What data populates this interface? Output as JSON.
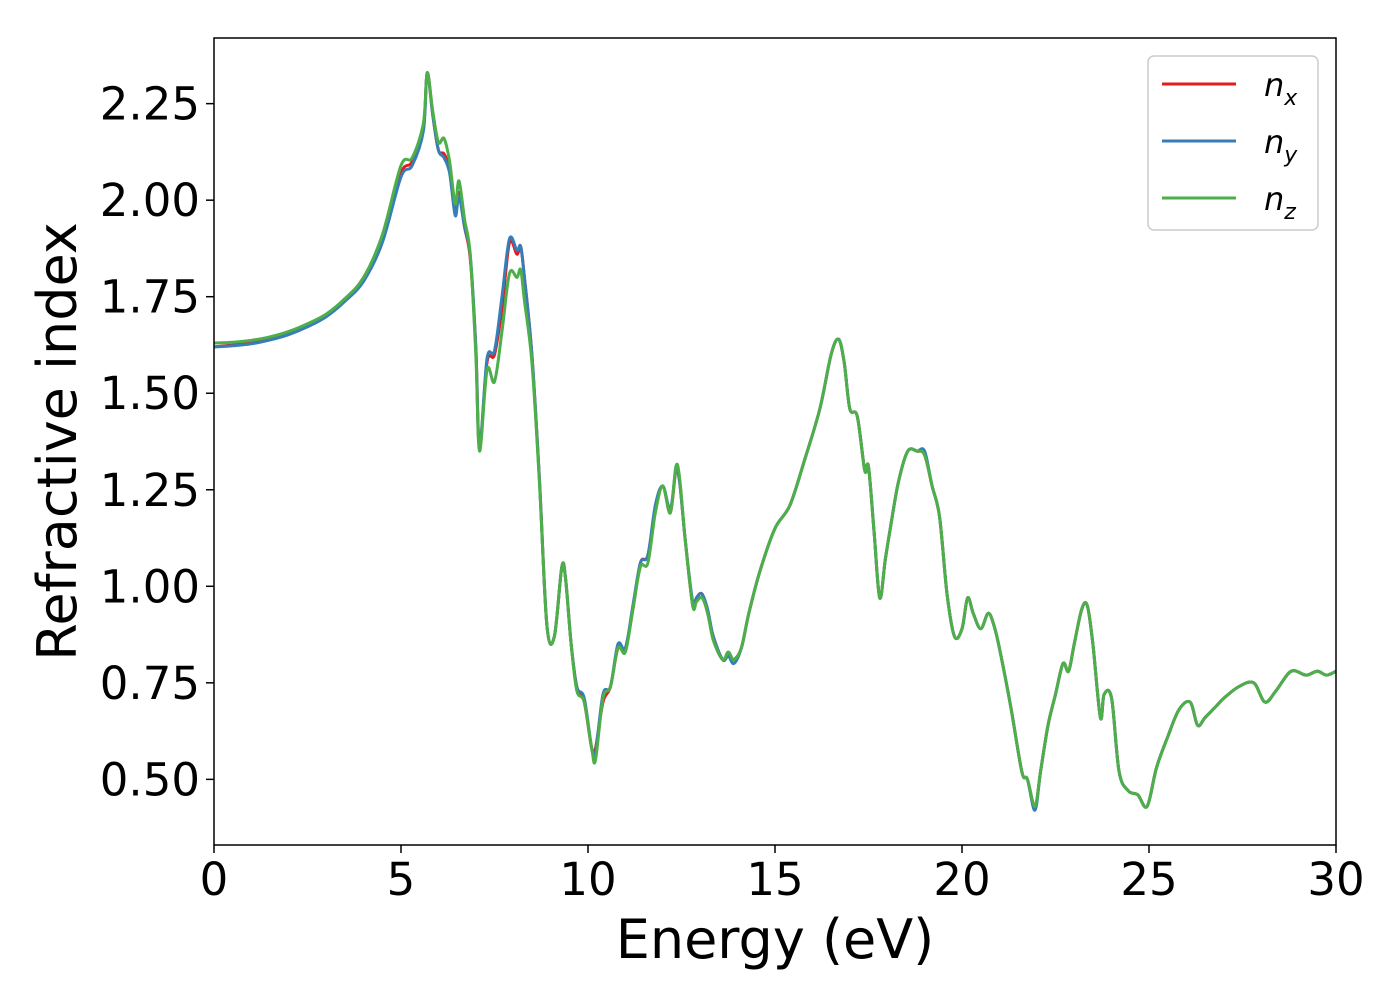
{
  "chart_data": {
    "type": "line",
    "title": "",
    "xlabel": "Energy (eV)",
    "ylabel": "Refractive index",
    "xlim": [
      0,
      30
    ],
    "ylim": [
      0.33,
      2.42
    ],
    "xticks": [
      0,
      5,
      10,
      15,
      20,
      25,
      30
    ],
    "xtick_labels": [
      "0",
      "5",
      "10",
      "15",
      "20",
      "25",
      "30"
    ],
    "yticks": [
      0.5,
      0.75,
      1.0,
      1.25,
      1.5,
      1.75,
      2.0,
      2.25
    ],
    "ytick_labels": [
      "0.50",
      "0.75",
      "1.00",
      "1.25",
      "1.50",
      "1.75",
      "2.00",
      "2.25"
    ],
    "grid": false,
    "legend_position": "top-right",
    "x": [
      0,
      0.5,
      1,
      1.5,
      2,
      2.5,
      3,
      3.5,
      4,
      4.5,
      5,
      5.3,
      5.6,
      5.7,
      5.85,
      6.0,
      6.15,
      6.3,
      6.45,
      6.55,
      6.7,
      6.85,
      7.0,
      7.1,
      7.3,
      7.5,
      7.7,
      7.9,
      8.1,
      8.2,
      8.3,
      8.5,
      8.7,
      8.9,
      9.1,
      9.3,
      9.4,
      9.55,
      9.7,
      9.9,
      10.1,
      10.2,
      10.4,
      10.6,
      10.8,
      11.0,
      11.2,
      11.4,
      11.6,
      11.8,
      12.0,
      12.2,
      12.35,
      12.45,
      12.6,
      12.8,
      12.9,
      13.05,
      13.2,
      13.35,
      13.6,
      13.75,
      13.9,
      14.1,
      14.3,
      14.6,
      15.0,
      15.4,
      15.8,
      16.2,
      16.5,
      16.7,
      16.85,
      17.0,
      17.2,
      17.4,
      17.5,
      17.65,
      17.8,
      17.95,
      18.1,
      18.3,
      18.55,
      18.8,
      19.0,
      19.2,
      19.4,
      19.6,
      19.8,
      20.0,
      20.15,
      20.3,
      20.5,
      20.7,
      20.85,
      21.0,
      21.3,
      21.6,
      21.75,
      21.95,
      22.1,
      22.3,
      22.5,
      22.7,
      22.85,
      23.0,
      23.2,
      23.35,
      23.5,
      23.7,
      23.8,
      24.0,
      24.2,
      24.45,
      24.7,
      24.95,
      25.2,
      25.5,
      25.8,
      26.1,
      26.3,
      26.5,
      26.8,
      27.0,
      27.4,
      27.8,
      28.1,
      28.4,
      28.8,
      29.2,
      29.5,
      29.75,
      30.0
    ],
    "series": [
      {
        "name": "n_x",
        "color": "#e41a1c",
        "values": [
          1.62,
          1.625,
          1.63,
          1.64,
          1.655,
          1.675,
          1.7,
          1.74,
          1.8,
          1.9,
          2.07,
          2.1,
          2.19,
          2.33,
          2.22,
          2.13,
          2.12,
          2.08,
          1.97,
          2.02,
          1.93,
          1.85,
          1.62,
          1.36,
          1.58,
          1.6,
          1.72,
          1.89,
          1.86,
          1.88,
          1.8,
          1.6,
          1.28,
          0.9,
          0.87,
          1.05,
          1.02,
          0.85,
          0.74,
          0.7,
          0.58,
          0.58,
          0.7,
          0.74,
          0.84,
          0.84,
          0.94,
          1.06,
          1.08,
          1.2,
          1.26,
          1.19,
          1.3,
          1.27,
          1.12,
          0.95,
          0.97,
          0.98,
          0.93,
          0.87,
          0.81,
          0.82,
          0.81,
          0.84,
          0.93,
          1.04,
          1.15,
          1.21,
          1.33,
          1.46,
          1.6,
          1.64,
          1.58,
          1.46,
          1.44,
          1.3,
          1.31,
          1.14,
          0.97,
          1.07,
          1.16,
          1.27,
          1.35,
          1.35,
          1.34,
          1.26,
          1.18,
          0.98,
          0.87,
          0.89,
          0.97,
          0.93,
          0.89,
          0.93,
          0.9,
          0.84,
          0.69,
          0.52,
          0.5,
          0.43,
          0.52,
          0.64,
          0.72,
          0.8,
          0.78,
          0.85,
          0.94,
          0.95,
          0.85,
          0.66,
          0.72,
          0.71,
          0.52,
          0.47,
          0.46,
          0.43,
          0.53,
          0.61,
          0.68,
          0.7,
          0.64,
          0.66,
          0.69,
          0.71,
          0.74,
          0.75,
          0.7,
          0.73,
          0.78,
          0.77,
          0.78,
          0.77,
          0.78
        ],
        "note": ""
      },
      {
        "name": "n_y",
        "color": "#377eb8",
        "values": [
          1.62,
          1.623,
          1.628,
          1.638,
          1.652,
          1.672,
          1.698,
          1.738,
          1.79,
          1.89,
          2.06,
          2.09,
          2.18,
          2.33,
          2.22,
          2.13,
          2.11,
          2.07,
          1.96,
          2.01,
          1.93,
          1.86,
          1.62,
          1.36,
          1.59,
          1.61,
          1.75,
          1.9,
          1.87,
          1.88,
          1.8,
          1.6,
          1.28,
          0.9,
          0.87,
          1.05,
          1.02,
          0.85,
          0.74,
          0.71,
          0.58,
          0.57,
          0.72,
          0.74,
          0.85,
          0.84,
          0.95,
          1.06,
          1.08,
          1.21,
          1.26,
          1.2,
          1.3,
          1.27,
          1.12,
          0.96,
          0.97,
          0.98,
          0.94,
          0.87,
          0.81,
          0.82,
          0.8,
          0.84,
          0.93,
          1.04,
          1.15,
          1.21,
          1.33,
          1.46,
          1.6,
          1.64,
          1.58,
          1.46,
          1.44,
          1.3,
          1.31,
          1.14,
          0.97,
          1.07,
          1.16,
          1.27,
          1.35,
          1.35,
          1.35,
          1.26,
          1.18,
          0.98,
          0.87,
          0.89,
          0.97,
          0.93,
          0.89,
          0.93,
          0.9,
          0.84,
          0.69,
          0.52,
          0.5,
          0.42,
          0.52,
          0.64,
          0.72,
          0.8,
          0.78,
          0.85,
          0.94,
          0.95,
          0.85,
          0.66,
          0.72,
          0.71,
          0.52,
          0.47,
          0.46,
          0.43,
          0.53,
          0.61,
          0.68,
          0.7,
          0.64,
          0.66,
          0.69,
          0.71,
          0.74,
          0.75,
          0.7,
          0.73,
          0.78,
          0.77,
          0.78,
          0.77,
          0.78
        ],
        "note": ""
      },
      {
        "name": "n_z",
        "color": "#4daf4a",
        "values": [
          1.63,
          1.632,
          1.637,
          1.646,
          1.66,
          1.68,
          1.705,
          1.745,
          1.8,
          1.91,
          2.09,
          2.11,
          2.2,
          2.33,
          2.23,
          2.15,
          2.16,
          2.1,
          1.99,
          2.05,
          1.95,
          1.86,
          1.6,
          1.35,
          1.56,
          1.53,
          1.66,
          1.81,
          1.8,
          1.82,
          1.74,
          1.58,
          1.27,
          0.9,
          0.87,
          1.05,
          1.02,
          0.85,
          0.73,
          0.7,
          0.58,
          0.55,
          0.71,
          0.74,
          0.84,
          0.83,
          0.94,
          1.05,
          1.06,
          1.19,
          1.26,
          1.19,
          1.31,
          1.28,
          1.12,
          0.95,
          0.96,
          0.97,
          0.93,
          0.86,
          0.81,
          0.83,
          0.81,
          0.84,
          0.93,
          1.04,
          1.15,
          1.21,
          1.33,
          1.46,
          1.6,
          1.64,
          1.58,
          1.46,
          1.44,
          1.3,
          1.31,
          1.14,
          0.97,
          1.07,
          1.16,
          1.27,
          1.35,
          1.35,
          1.34,
          1.26,
          1.18,
          0.98,
          0.87,
          0.89,
          0.97,
          0.93,
          0.89,
          0.93,
          0.9,
          0.84,
          0.69,
          0.52,
          0.5,
          0.43,
          0.52,
          0.64,
          0.72,
          0.8,
          0.78,
          0.85,
          0.94,
          0.95,
          0.85,
          0.66,
          0.72,
          0.71,
          0.52,
          0.47,
          0.46,
          0.43,
          0.53,
          0.61,
          0.68,
          0.7,
          0.64,
          0.66,
          0.69,
          0.71,
          0.74,
          0.75,
          0.7,
          0.73,
          0.78,
          0.77,
          0.78,
          0.77,
          0.78
        ],
        "note": ""
      }
    ],
    "legend": [
      {
        "base": "n",
        "sub": "x"
      },
      {
        "base": "n",
        "sub": "y"
      },
      {
        "base": "n",
        "sub": "z"
      }
    ]
  }
}
